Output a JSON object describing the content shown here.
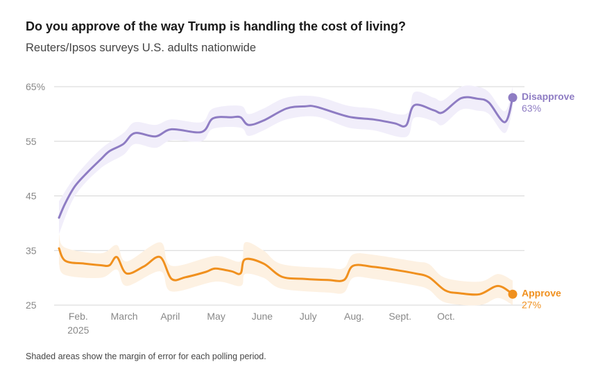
{
  "title": "Do you approve of the way Trump is handling the cost of living?",
  "subtitle": "Reuters/Ipsos surveys U.S. adults nationwide",
  "footnote": "Shaded areas show the margin of error for each polling period.",
  "colors": {
    "disapprove": "#8e7cc3",
    "approve": "#f0901e",
    "disapprove_band": "#f1eefa",
    "approve_band": "#fdf1e2",
    "grid": "#d6d6d6",
    "tick": "#888888"
  },
  "chart_data": {
    "type": "line",
    "title": "Do you approve of the way Trump is handling the cost of living?",
    "ylim": [
      25,
      65
    ],
    "yticks": [
      {
        "value": 65,
        "label": "65%"
      },
      {
        "value": 55,
        "label": "55"
      },
      {
        "value": 45,
        "label": "45"
      },
      {
        "value": 35,
        "label": "35"
      },
      {
        "value": 25,
        "label": "25"
      }
    ],
    "xlim": [
      0,
      9.9
    ],
    "xticks": [
      {
        "value": 0.42,
        "label": "Feb."
      },
      {
        "value": 1.42,
        "label": "March"
      },
      {
        "value": 2.42,
        "label": "April"
      },
      {
        "value": 3.42,
        "label": "May"
      },
      {
        "value": 4.42,
        "label": "June"
      },
      {
        "value": 5.42,
        "label": "July"
      },
      {
        "value": 6.42,
        "label": "Aug."
      },
      {
        "value": 7.42,
        "label": "Sept."
      },
      {
        "value": 8.42,
        "label": "Oct."
      }
    ],
    "year_label": "2025",
    "series": [
      {
        "name": "Disapprove",
        "end_label": "Disapprove",
        "end_value_label": "63%",
        "points": [
          [
            0,
            41
          ],
          [
            0.14,
            43.7
          ],
          [
            0.35,
            46.8
          ],
          [
            0.63,
            49.4
          ],
          [
            0.91,
            51.7
          ],
          [
            1.1,
            53.2
          ],
          [
            1.4,
            54.5
          ],
          [
            1.65,
            56.5
          ],
          [
            2.1,
            55.9
          ],
          [
            2.45,
            57.2
          ],
          [
            3.1,
            56.7
          ],
          [
            3.35,
            59.2
          ],
          [
            3.75,
            59.4
          ],
          [
            3.95,
            59.4
          ],
          [
            4.12,
            58.0
          ],
          [
            4.45,
            58.8
          ],
          [
            4.95,
            61.0
          ],
          [
            5.35,
            61.4
          ],
          [
            5.6,
            61.3
          ],
          [
            6.3,
            59.5
          ],
          [
            6.85,
            59.0
          ],
          [
            7.3,
            58.3
          ],
          [
            7.55,
            57.9
          ],
          [
            7.73,
            61.6
          ],
          [
            8.15,
            60.7
          ],
          [
            8.35,
            60.3
          ],
          [
            8.75,
            62.9
          ],
          [
            9.1,
            62.8
          ],
          [
            9.35,
            62.1
          ],
          [
            9.7,
            58.5
          ],
          [
            9.87,
            63.0
          ]
        ],
        "band_upper": [
          [
            0,
            44
          ],
          [
            0.35,
            48.5
          ],
          [
            0.9,
            53.5
          ],
          [
            1.4,
            56.5
          ],
          [
            1.65,
            58.5
          ],
          [
            2.1,
            58
          ],
          [
            2.45,
            59
          ],
          [
            3.1,
            58.5
          ],
          [
            3.35,
            61
          ],
          [
            3.95,
            61.5
          ],
          [
            4.12,
            60
          ],
          [
            4.45,
            61
          ],
          [
            4.95,
            63
          ],
          [
            5.6,
            63.2
          ],
          [
            6.3,
            61.5
          ],
          [
            6.85,
            61
          ],
          [
            7.55,
            60
          ],
          [
            7.73,
            64
          ],
          [
            8.15,
            63
          ],
          [
            8.35,
            62.5
          ],
          [
            8.75,
            65
          ],
          [
            9.1,
            65
          ],
          [
            9.35,
            64
          ],
          [
            9.7,
            60.5
          ],
          [
            9.87,
            65
          ]
        ],
        "band_lower": [
          [
            0,
            38
          ],
          [
            0.35,
            45
          ],
          [
            0.9,
            50
          ],
          [
            1.4,
            52.5
          ],
          [
            1.65,
            54.5
          ],
          [
            2.1,
            53.8
          ],
          [
            2.45,
            55.2
          ],
          [
            3.1,
            55
          ],
          [
            3.35,
            57.3
          ],
          [
            3.95,
            57.5
          ],
          [
            4.12,
            56
          ],
          [
            4.45,
            57
          ],
          [
            4.95,
            59
          ],
          [
            5.6,
            59.5
          ],
          [
            6.3,
            57.5
          ],
          [
            6.85,
            57
          ],
          [
            7.55,
            55.8
          ],
          [
            7.73,
            59.3
          ],
          [
            8.15,
            58.7
          ],
          [
            8.35,
            58
          ],
          [
            8.75,
            60.8
          ],
          [
            9.1,
            60.6
          ],
          [
            9.35,
            60
          ],
          [
            9.7,
            56.5
          ],
          [
            9.87,
            61
          ]
        ]
      },
      {
        "name": "Approve",
        "end_label": "Approve",
        "end_value_label": "27%",
        "points": [
          [
            0,
            35.4
          ],
          [
            0.14,
            33.1
          ],
          [
            0.55,
            32.6
          ],
          [
            0.91,
            32.3
          ],
          [
            1.1,
            32.3
          ],
          [
            1.26,
            33.8
          ],
          [
            1.47,
            30.8
          ],
          [
            1.85,
            32.1
          ],
          [
            2.2,
            33.8
          ],
          [
            2.45,
            29.8
          ],
          [
            2.75,
            30.1
          ],
          [
            3.2,
            31.1
          ],
          [
            3.4,
            31.7
          ],
          [
            3.75,
            31.2
          ],
          [
            3.95,
            30.8
          ],
          [
            4.05,
            33.4
          ],
          [
            4.45,
            32.6
          ],
          [
            4.85,
            30.2
          ],
          [
            5.35,
            29.8
          ],
          [
            5.85,
            29.6
          ],
          [
            6.2,
            29.6
          ],
          [
            6.4,
            32.2
          ],
          [
            6.85,
            32.0
          ],
          [
            7.35,
            31.4
          ],
          [
            7.75,
            30.8
          ],
          [
            8.05,
            30.1
          ],
          [
            8.4,
            27.7
          ],
          [
            8.7,
            27.2
          ],
          [
            9.15,
            27.0
          ],
          [
            9.55,
            28.5
          ],
          [
            9.87,
            27.0
          ]
        ],
        "band_upper": [
          [
            0,
            38
          ],
          [
            0.14,
            35.5
          ],
          [
            0.91,
            34.5
          ],
          [
            1.26,
            36
          ],
          [
            1.47,
            33
          ],
          [
            2.2,
            36.5
          ],
          [
            2.45,
            32.2
          ],
          [
            3.4,
            34
          ],
          [
            3.95,
            33
          ],
          [
            4.05,
            36.5
          ],
          [
            4.45,
            35
          ],
          [
            4.85,
            32.5
          ],
          [
            5.85,
            31.8
          ],
          [
            6.2,
            31.8
          ],
          [
            6.4,
            34.3
          ],
          [
            6.85,
            34.2
          ],
          [
            7.75,
            33
          ],
          [
            8.05,
            32.5
          ],
          [
            8.4,
            30
          ],
          [
            9.15,
            29.3
          ],
          [
            9.55,
            30.7
          ],
          [
            9.87,
            29.5
          ]
        ],
        "band_lower": [
          [
            0,
            32.5
          ],
          [
            0.14,
            30.5
          ],
          [
            0.91,
            30
          ],
          [
            1.26,
            31.5
          ],
          [
            1.47,
            28.5
          ],
          [
            2.2,
            31.2
          ],
          [
            2.45,
            27.5
          ],
          [
            3.4,
            29.3
          ],
          [
            3.95,
            28.5
          ],
          [
            4.05,
            30.7
          ],
          [
            4.45,
            30
          ],
          [
            4.85,
            28
          ],
          [
            5.85,
            27.3
          ],
          [
            6.2,
            27.3
          ],
          [
            6.4,
            30
          ],
          [
            6.85,
            29.8
          ],
          [
            7.75,
            28.6
          ],
          [
            8.05,
            27.8
          ],
          [
            8.4,
            25.5
          ],
          [
            9.15,
            25
          ],
          [
            9.55,
            26.3
          ],
          [
            9.87,
            25
          ]
        ]
      }
    ]
  }
}
